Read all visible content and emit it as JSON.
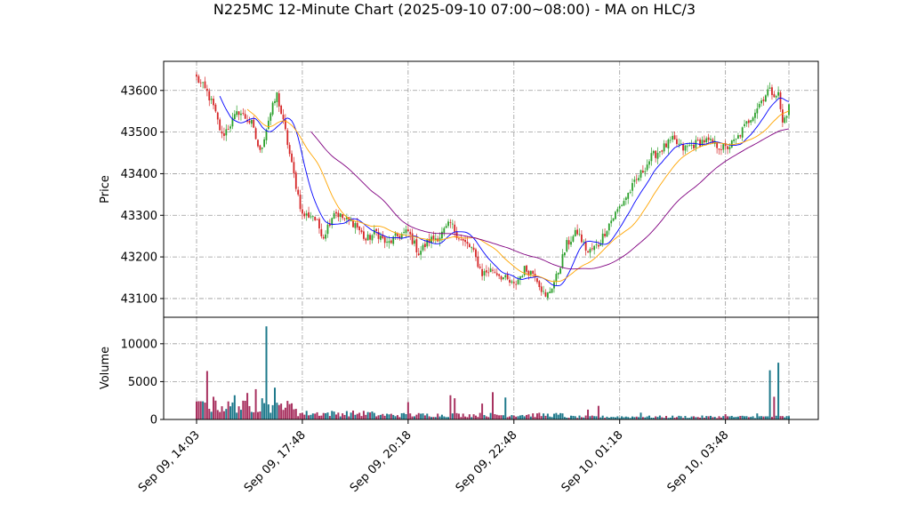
{
  "chart_data": {
    "type": "candlestick",
    "title": "N225MC 12-Minute Chart (2025-09-10 07:00~08:00) - MA on HLC/3",
    "price_panel": {
      "ylabel": "Price",
      "ylim": [
        43055,
        43670
      ],
      "yticks": [
        43100,
        43200,
        43300,
        43400,
        43500,
        43600
      ],
      "grid": true
    },
    "volume_panel": {
      "ylabel": "Volume",
      "ylim": [
        0,
        13500
      ],
      "yticks": [
        0,
        5000,
        10000
      ],
      "grid": true
    },
    "x_ticks": [
      "Sep 09, 14:03",
      "Sep 09, 17:48",
      "Sep 09, 20:18",
      "Sep 09, 22:48",
      "Sep 10, 01:18",
      "Sep 10, 03:48"
    ],
    "colors": {
      "up": "#2ca02c",
      "down": "#d62728",
      "ma_fast": "#0000ff",
      "ma_mid": "#ffa500",
      "ma_slow": "#800080"
    },
    "price_anchors": [
      [
        0,
        43630
      ],
      [
        5,
        43595
      ],
      [
        8,
        43560
      ],
      [
        12,
        43490
      ],
      [
        16,
        43520
      ],
      [
        20,
        43550
      ],
      [
        26,
        43520
      ],
      [
        30,
        43450
      ],
      [
        34,
        43530
      ],
      [
        38,
        43590
      ],
      [
        42,
        43500
      ],
      [
        45,
        43420
      ],
      [
        50,
        43300
      ],
      [
        55,
        43300
      ],
      [
        60,
        43250
      ],
      [
        65,
        43310
      ],
      [
        70,
        43290
      ],
      [
        75,
        43280
      ],
      [
        80,
        43240
      ],
      [
        85,
        43260
      ],
      [
        90,
        43230
      ],
      [
        95,
        43250
      ],
      [
        100,
        43260
      ],
      [
        105,
        43210
      ],
      [
        110,
        43240
      ],
      [
        115,
        43250
      ],
      [
        120,
        43280
      ],
      [
        125,
        43240
      ],
      [
        130,
        43220
      ],
      [
        135,
        43160
      ],
      [
        140,
        43170
      ],
      [
        145,
        43150
      ],
      [
        150,
        43130
      ],
      [
        155,
        43170
      ],
      [
        160,
        43160
      ],
      [
        165,
        43100
      ],
      [
        170,
        43150
      ],
      [
        175,
        43230
      ],
      [
        180,
        43260
      ],
      [
        185,
        43210
      ],
      [
        190,
        43230
      ],
      [
        195,
        43280
      ],
      [
        200,
        43320
      ],
      [
        205,
        43360
      ],
      [
        210,
        43400
      ],
      [
        215,
        43440
      ],
      [
        220,
        43460
      ],
      [
        225,
        43480
      ],
      [
        230,
        43460
      ],
      [
        235,
        43470
      ],
      [
        240,
        43480
      ],
      [
        245,
        43470
      ],
      [
        250,
        43460
      ],
      [
        255,
        43480
      ],
      [
        260,
        43520
      ],
      [
        265,
        43560
      ],
      [
        270,
        43600
      ],
      [
        275,
        43590
      ],
      [
        277,
        43520
      ],
      [
        280,
        43560
      ]
    ],
    "volume_spikes": [
      [
        2,
        2400
      ],
      [
        5,
        6400
      ],
      [
        8,
        3000
      ],
      [
        18,
        3200
      ],
      [
        24,
        3500
      ],
      [
        28,
        4000
      ],
      [
        31,
        2800
      ],
      [
        33,
        12300
      ],
      [
        37,
        4200
      ],
      [
        40,
        2100
      ],
      [
        100,
        2300
      ],
      [
        120,
        3200
      ],
      [
        122,
        2800
      ],
      [
        135,
        2100
      ],
      [
        140,
        3600
      ],
      [
        146,
        2900
      ],
      [
        185,
        1300
      ],
      [
        190,
        1800
      ],
      [
        210,
        900
      ],
      [
        250,
        700
      ],
      [
        265,
        800
      ],
      [
        271,
        6500
      ],
      [
        273,
        3000
      ],
      [
        275,
        7500
      ]
    ]
  }
}
